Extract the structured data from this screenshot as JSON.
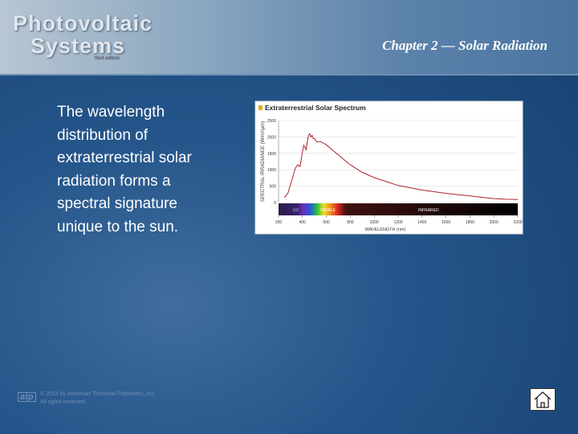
{
  "header": {
    "logo": {
      "line1": "Photovoltaic",
      "line2": "Systems",
      "edition": "third edition"
    },
    "chapter": "Chapter 2 — Solar Radiation"
  },
  "body": {
    "lines": [
      "The wavelength",
      "distribution of",
      "extraterrestrial solar",
      "radiation forms a",
      "spectral signature",
      "unique to the sun."
    ]
  },
  "chart_data": {
    "type": "line",
    "title": "Extraterrestrial Solar Spectrum",
    "y_label": "SPECTRAL IRRADIANCE (W/m²/µm)",
    "x_label": "WAVELENGTH (nm)",
    "x": [
      250,
      280,
      300,
      320,
      340,
      360,
      380,
      400,
      410,
      420,
      430,
      440,
      450,
      460,
      470,
      480,
      490,
      500,
      520,
      550,
      600,
      650,
      700,
      750,
      800,
      900,
      1000,
      1100,
      1200,
      1300,
      1400,
      1500,
      1600,
      1700,
      1800,
      1900,
      2000,
      2100,
      2200
    ],
    "values": [
      150,
      300,
      550,
      800,
      1050,
      1150,
      1100,
      1550,
      1750,
      1700,
      1600,
      1850,
      2050,
      2100,
      2000,
      2050,
      1950,
      1950,
      1850,
      1860,
      1760,
      1600,
      1450,
      1300,
      1150,
      920,
      760,
      640,
      520,
      450,
      380,
      330,
      280,
      240,
      200,
      160,
      120,
      100,
      90
    ],
    "color": "#b0232a",
    "xlim": [
      200,
      2200
    ],
    "ylim": [
      0,
      2500
    ],
    "xticks": [
      200,
      400,
      600,
      800,
      1000,
      1200,
      1400,
      1600,
      1800,
      2000,
      2200
    ],
    "yticks": [
      0,
      500,
      1000,
      1500,
      2000,
      2500
    ],
    "grid": true,
    "band_labels": [
      "UV",
      "VISIBLE",
      "INFRARED"
    ]
  },
  "footer": {
    "publisher_logo": "atp",
    "copyright": "© 2013 by American Technical Publishers, Inc.",
    "rights": "All rights reserved"
  }
}
